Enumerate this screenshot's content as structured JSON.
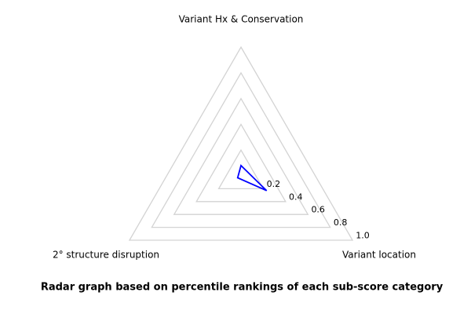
{
  "colors": {
    "background": "#ffffff",
    "grid": "#d3d3d3",
    "data_line": "#0000ff",
    "text": "#000000"
  },
  "chart_data": {
    "type": "radar",
    "categories": [
      "Variant Hx & Conservation",
      "Variant location",
      "2° structure disruption"
    ],
    "values": [
      0.08,
      0.23,
      0.03
    ],
    "levels": [
      0.2,
      0.4,
      0.6,
      0.8,
      1.0
    ],
    "tick_labels": [
      "0.2",
      "0.4",
      "0.6",
      "0.8",
      "1.0"
    ],
    "rlim": [
      0,
      1.0
    ],
    "title": "",
    "caption": "Radar graph based on percentile rankings of each sub-score category",
    "legend": "none",
    "grid": "on",
    "grid_shape": "triangle",
    "axis_angles_deg": [
      90,
      -30,
      210
    ],
    "tick_axis_angle_deg": -30
  }
}
